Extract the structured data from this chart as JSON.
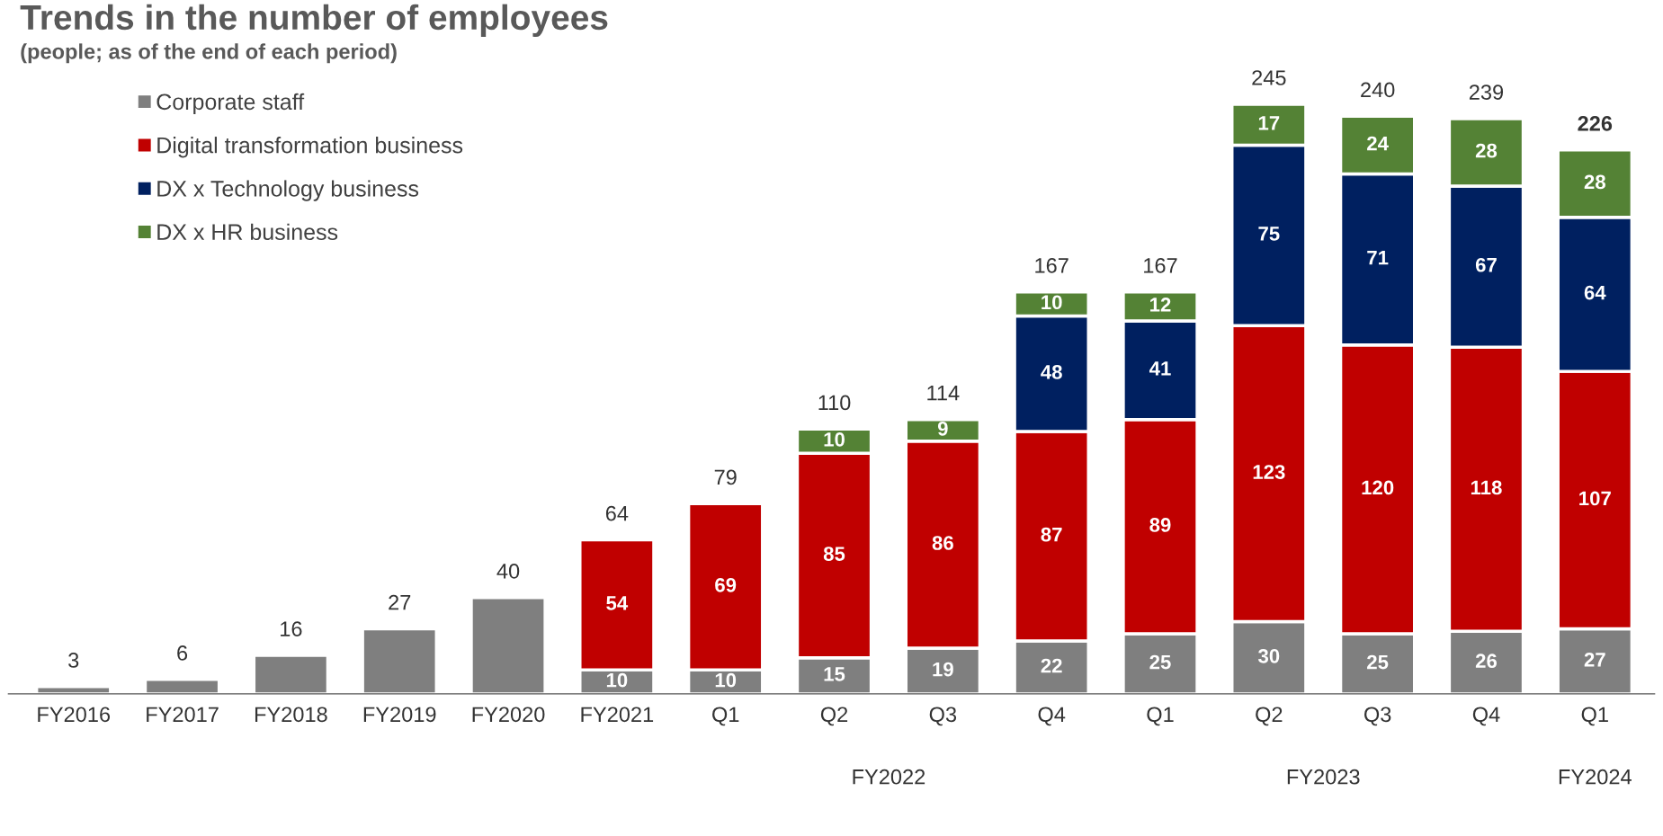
{
  "chart_data": {
    "type": "bar",
    "title": "Trends in the number of employees",
    "subtitle": "(people; as of the end of each period)",
    "categories": [
      "FY2016",
      "FY2017",
      "FY2018",
      "FY2019",
      "FY2020",
      "FY2021",
      "Q1",
      "Q2",
      "Q3",
      "Q4",
      "Q1",
      "Q2",
      "Q3",
      "Q4",
      "Q1"
    ],
    "stacked": true,
    "legend": "top left",
    "grid": false,
    "series": [
      {
        "name": "Corporate staff",
        "color": "#7f7f7f",
        "values": [
          3,
          6,
          16,
          27,
          40,
          10,
          10,
          15,
          19,
          22,
          25,
          30,
          25,
          26,
          27
        ],
        "value_labels": [
          null,
          null,
          null,
          null,
          null,
          "10",
          "10",
          "15",
          "19",
          "22",
          "25",
          "30",
          "25",
          "26",
          "27"
        ]
      },
      {
        "name": "Digital transformation business",
        "color": "#c00000",
        "values": [
          null,
          null,
          null,
          null,
          null,
          54,
          69,
          85,
          86,
          87,
          89,
          123,
          120,
          118,
          107
        ],
        "value_labels": [
          null,
          null,
          null,
          null,
          null,
          "54",
          "69",
          "85",
          "86",
          "87",
          "89",
          "123",
          "120",
          "118",
          "107"
        ]
      },
      {
        "name": "DX x Technology business",
        "color": "#002060",
        "values": [
          null,
          null,
          null,
          null,
          null,
          null,
          null,
          null,
          null,
          48,
          41,
          75,
          71,
          67,
          64
        ],
        "value_labels": [
          null,
          null,
          null,
          null,
          null,
          null,
          null,
          null,
          null,
          "48",
          "41",
          "75",
          "71",
          "67",
          "64"
        ]
      },
      {
        "name": "DX x HR business",
        "color": "#548235",
        "values": [
          null,
          null,
          null,
          null,
          null,
          null,
          null,
          10,
          9,
          10,
          12,
          17,
          24,
          28,
          28
        ],
        "value_labels": [
          null,
          null,
          null,
          null,
          null,
          null,
          null,
          "10",
          "9",
          "10",
          "12",
          "17",
          "24",
          "28",
          "28"
        ]
      }
    ],
    "totals": [
      "3",
      "6",
      "16",
      "27",
      "40",
      "64",
      "79",
      "110",
      "114",
      "167",
      "167",
      "245",
      "240",
      "239",
      "226"
    ],
    "annotations": [
      "FY2022",
      "FY2023",
      "FY2024"
    ]
  }
}
